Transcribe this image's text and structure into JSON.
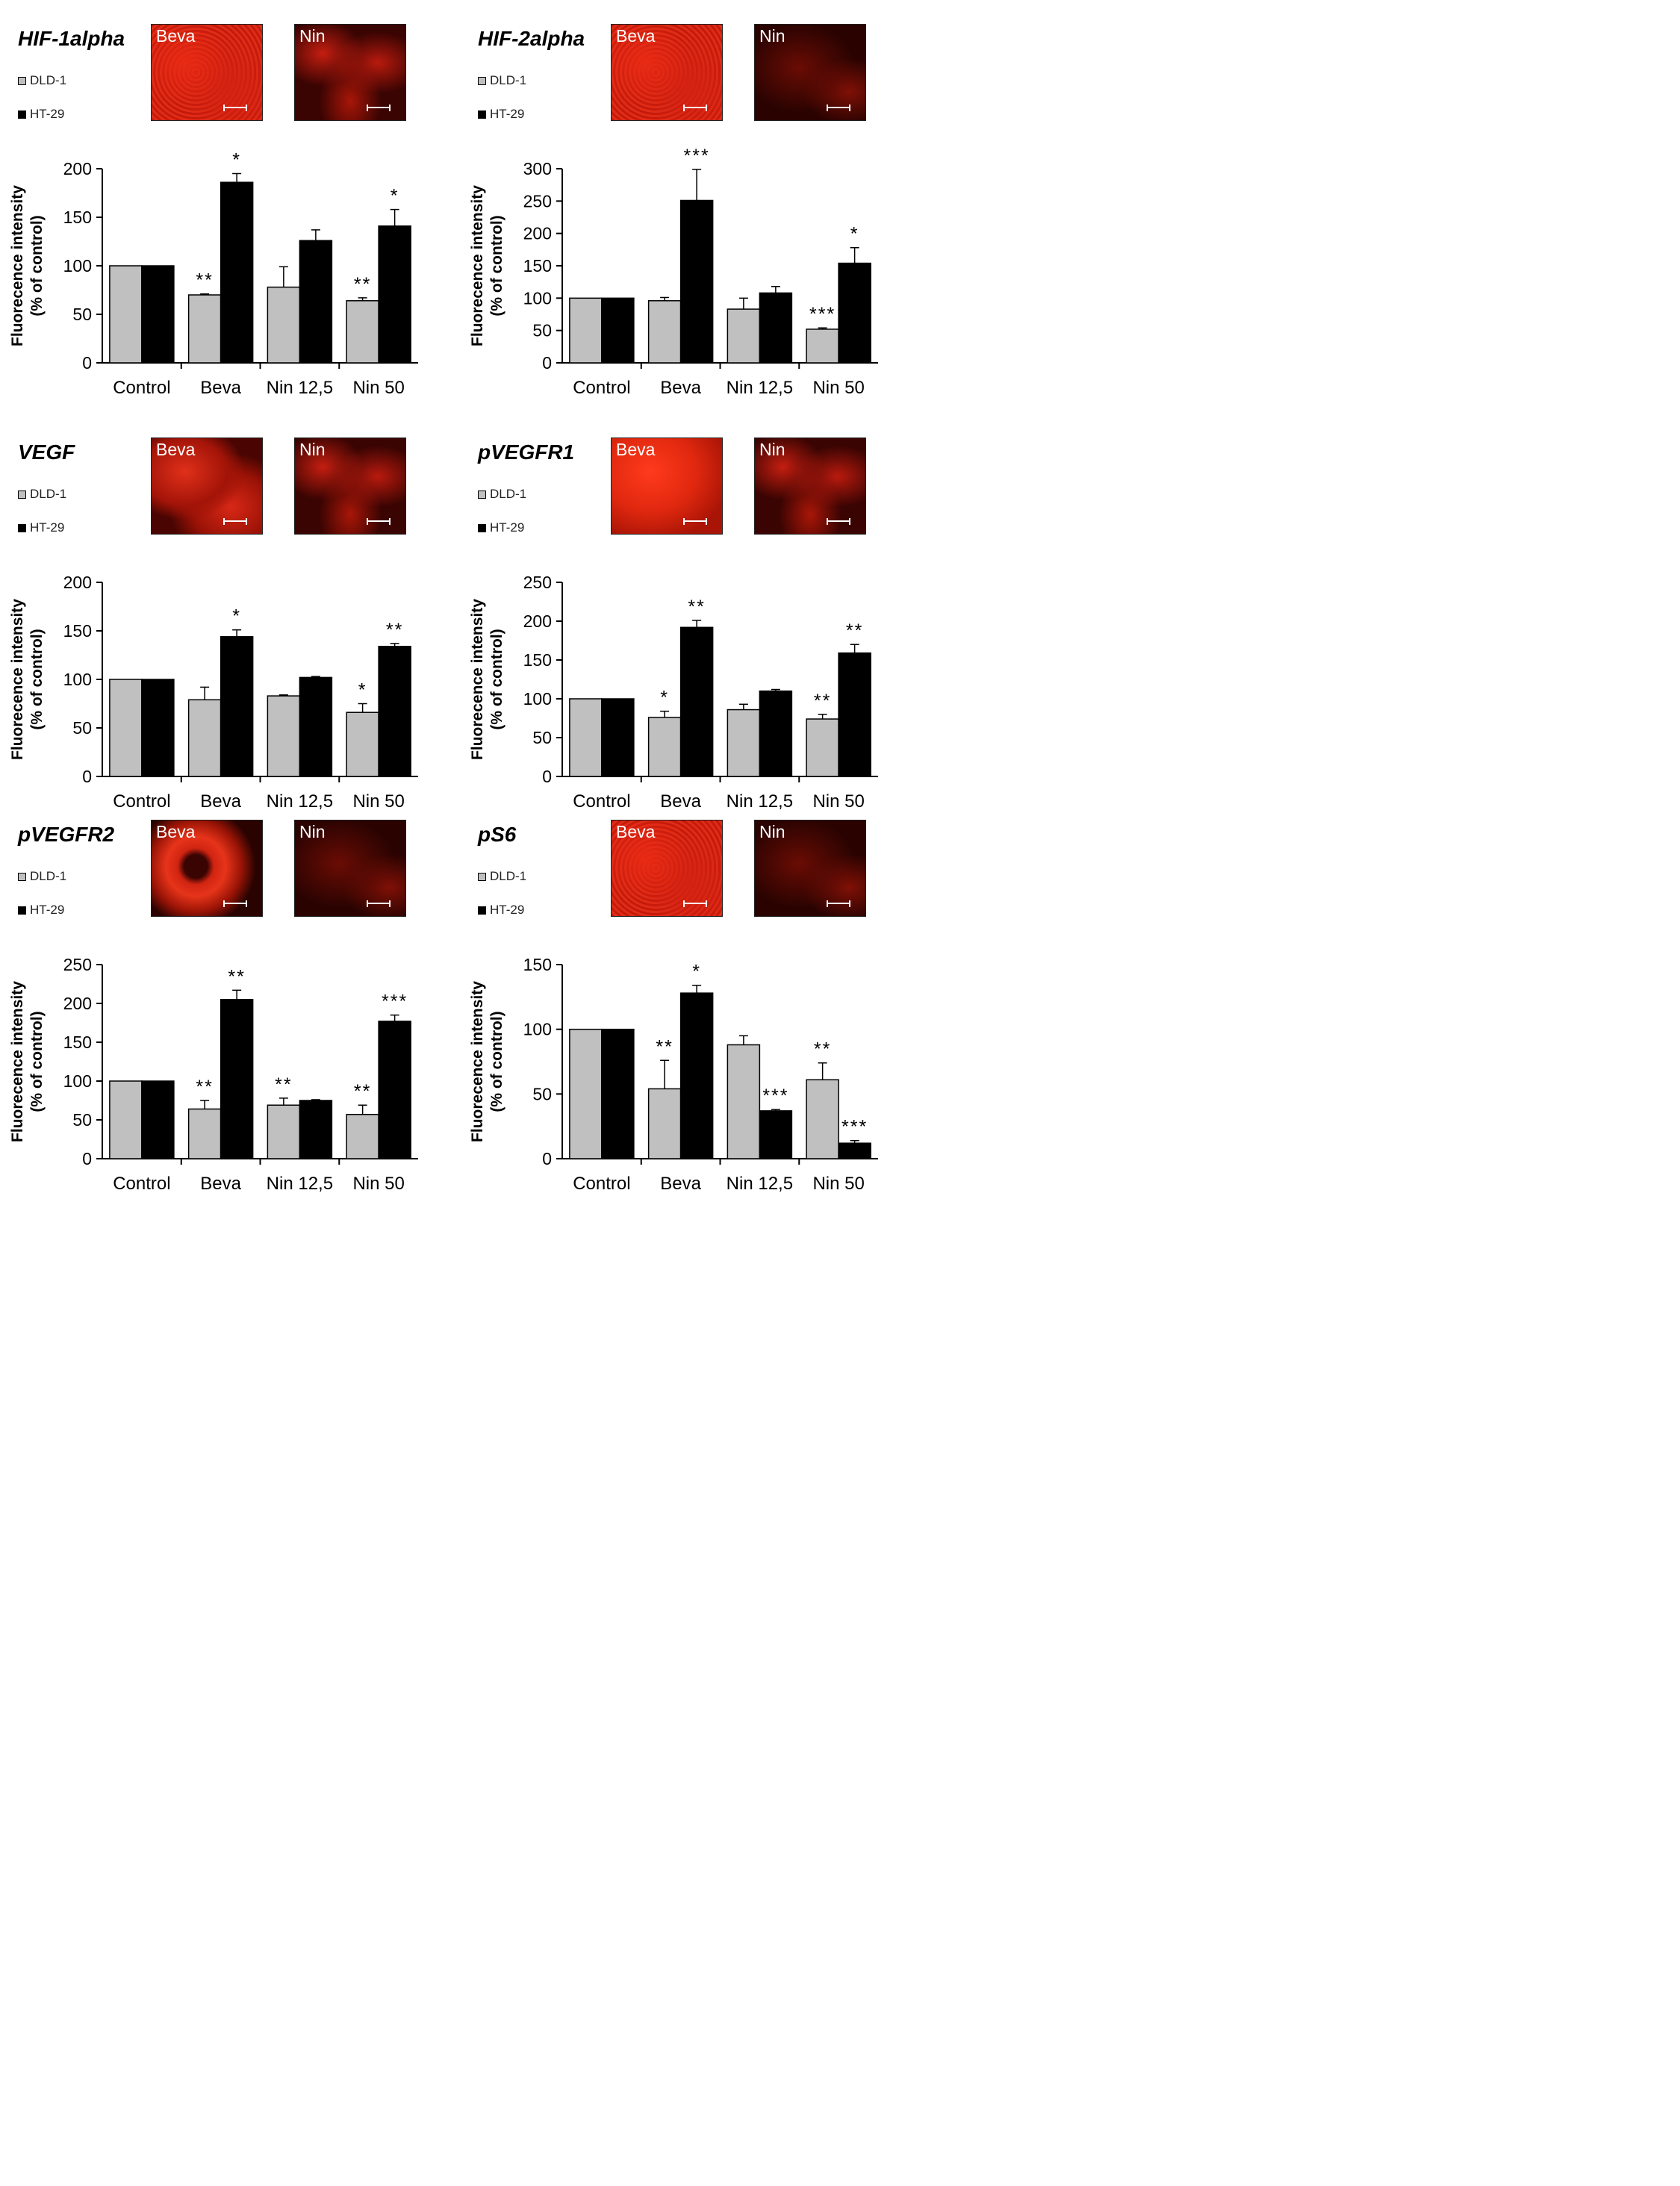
{
  "legend": {
    "dld1": "DLD-1",
    "ht29": "HT-29"
  },
  "colors": {
    "dld1": "#c0c0c0",
    "ht29": "#000000"
  },
  "y_label_line1": "Fluorecence intensity",
  "y_label_line2": "(% of control)",
  "chart_data": [
    {
      "type": "bar",
      "title": "HIF-1alpha",
      "micrographs": [
        "Beva",
        "Nin"
      ],
      "categories": [
        "Control",
        "Beva",
        "Nin 12,5",
        "Nin 50"
      ],
      "ylim": [
        0,
        200
      ],
      "yticks": [
        0,
        50,
        100,
        150,
        200
      ],
      "series": [
        {
          "name": "DLD-1",
          "values": [
            100,
            70,
            78,
            64
          ],
          "errors": [
            0,
            1,
            21,
            3
          ],
          "sig": [
            "",
            "**",
            "",
            "**"
          ]
        },
        {
          "name": "HT-29",
          "values": [
            100,
            186,
            126,
            141
          ],
          "errors": [
            0,
            9,
            11,
            17
          ],
          "sig": [
            "",
            "*",
            "",
            "*"
          ]
        }
      ]
    },
    {
      "type": "bar",
      "title": "HIF-2alpha",
      "micrographs": [
        "Beva",
        "Nin"
      ],
      "categories": [
        "Control",
        "Beva",
        "Nin 12,5",
        "Nin 50"
      ],
      "ylim": [
        0,
        300
      ],
      "yticks": [
        0,
        50,
        100,
        150,
        200,
        250,
        300
      ],
      "series": [
        {
          "name": "DLD-1",
          "values": [
            100,
            96,
            83,
            52
          ],
          "errors": [
            0,
            5,
            17,
            2
          ],
          "sig": [
            "",
            "",
            "",
            "***"
          ]
        },
        {
          "name": "HT-29",
          "values": [
            100,
            251,
            108,
            154
          ],
          "errors": [
            0,
            48,
            10,
            24
          ],
          "sig": [
            "",
            "***",
            "",
            "*"
          ]
        }
      ]
    },
    {
      "type": "bar",
      "title": "VEGF",
      "micrographs": [
        "Beva",
        "Nin"
      ],
      "categories": [
        "Control",
        "Beva",
        "Nin 12,5",
        "Nin 50"
      ],
      "ylim": [
        0,
        200
      ],
      "yticks": [
        0,
        50,
        100,
        150,
        200
      ],
      "series": [
        {
          "name": "DLD-1",
          "values": [
            100,
            79,
            83,
            66
          ],
          "errors": [
            0,
            13,
            1,
            9
          ],
          "sig": [
            "",
            "",
            "",
            "*"
          ]
        },
        {
          "name": "HT-29",
          "values": [
            100,
            144,
            102,
            134
          ],
          "errors": [
            0,
            7,
            1,
            3
          ],
          "sig": [
            "",
            "*",
            "",
            "**"
          ]
        }
      ]
    },
    {
      "type": "bar",
      "title": "pVEGFR1",
      "micrographs": [
        "Beva",
        "Nin"
      ],
      "categories": [
        "Control",
        "Beva",
        "Nin 12,5",
        "Nin 50"
      ],
      "ylim": [
        0,
        250
      ],
      "yticks": [
        0,
        50,
        100,
        150,
        200,
        250
      ],
      "series": [
        {
          "name": "DLD-1",
          "values": [
            100,
            76,
            86,
            74
          ],
          "errors": [
            0,
            8,
            7,
            6
          ],
          "sig": [
            "",
            "*",
            "",
            "**"
          ]
        },
        {
          "name": "HT-29",
          "values": [
            100,
            192,
            110,
            159
          ],
          "errors": [
            0,
            9,
            2,
            11
          ],
          "sig": [
            "",
            "**",
            "",
            "**"
          ]
        }
      ]
    },
    {
      "type": "bar",
      "title": "pVEGFR2",
      "micrographs": [
        "Beva",
        "Nin"
      ],
      "categories": [
        "Control",
        "Beva",
        "Nin 12,5",
        "Nin 50"
      ],
      "ylim": [
        0,
        250
      ],
      "yticks": [
        0,
        50,
        100,
        150,
        200,
        250
      ],
      "series": [
        {
          "name": "DLD-1",
          "values": [
            100,
            64,
            69,
            57
          ],
          "errors": [
            0,
            11,
            9,
            12
          ],
          "sig": [
            "",
            "**",
            "**",
            "**"
          ]
        },
        {
          "name": "HT-29",
          "values": [
            100,
            205,
            75,
            177
          ],
          "errors": [
            0,
            12,
            1,
            8
          ],
          "sig": [
            "",
            "**",
            "",
            "***"
          ]
        }
      ]
    },
    {
      "type": "bar",
      "title": "pS6",
      "micrographs": [
        "Beva",
        "Nin"
      ],
      "categories": [
        "Control",
        "Beva",
        "Nin 12,5",
        "Nin 50"
      ],
      "ylim": [
        0,
        150
      ],
      "yticks": [
        0,
        50,
        100,
        150
      ],
      "series": [
        {
          "name": "DLD-1",
          "values": [
            100,
            54,
            88,
            61
          ],
          "errors": [
            0,
            22,
            7,
            13
          ],
          "sig": [
            "",
            "**",
            "",
            "**"
          ]
        },
        {
          "name": "HT-29",
          "values": [
            100,
            128,
            37,
            12
          ],
          "errors": [
            0,
            6,
            1,
            2
          ],
          "sig": [
            "",
            "*",
            "***",
            "***"
          ]
        }
      ]
    }
  ]
}
